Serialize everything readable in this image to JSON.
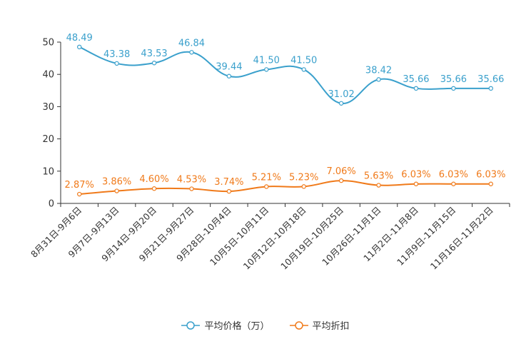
{
  "chart_data": {
    "type": "line",
    "title": "",
    "xlabel": "",
    "ylabel": "",
    "ylim": [
      0,
      50
    ],
    "yticks": [
      0,
      10,
      20,
      30,
      40,
      50
    ],
    "grid": false,
    "legend_position": "bottom-center",
    "categories": [
      "8月31日-9月6日",
      "9月7日-9月13日",
      "9月14日-9月20日",
      "9月21日-9月27日",
      "9月28日-10月4日",
      "10月5日-10月11日",
      "10月12日-10月18日",
      "10月19日-10月25日",
      "10月26日-11月1日",
      "11月2日-11月8日",
      "11月9日-11月15日",
      "11月16日-11月22日"
    ],
    "series": [
      {
        "name": "平均价格（万）",
        "color": "#3aa0cc",
        "values": [
          48.49,
          43.38,
          43.53,
          46.84,
          39.44,
          41.5,
          41.5,
          31.02,
          38.42,
          35.66,
          35.66,
          35.66
        ],
        "labels": [
          "48.49",
          "43.38",
          "43.53",
          "46.84",
          "39.44",
          "41.50",
          "41.50",
          "31.02",
          "38.42",
          "35.66",
          "35.66",
          "35.66"
        ]
      },
      {
        "name": "平均折扣",
        "color": "#f07a1a",
        "values": [
          2.87,
          3.86,
          4.6,
          4.53,
          3.74,
          5.21,
          5.23,
          7.06,
          5.63,
          6.03,
          6.03,
          6.03
        ],
        "labels": [
          "2.87%",
          "3.86%",
          "4.60%",
          "4.53%",
          "3.74%",
          "5.21%",
          "5.23%",
          "7.06%",
          "5.63%",
          "6.03%",
          "6.03%",
          "6.03%"
        ]
      }
    ]
  }
}
